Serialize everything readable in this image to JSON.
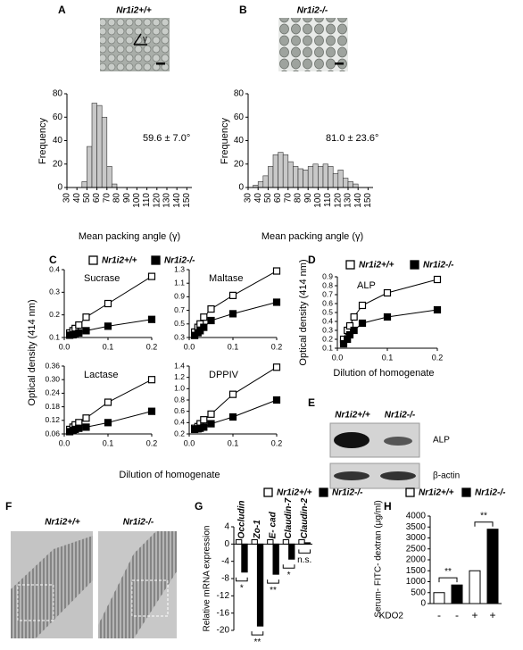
{
  "chart_data": [
    {
      "type": "histogram",
      "panel": "A",
      "title": "Nr1i2+/+",
      "image_label": "γ",
      "bins": [
        45,
        50,
        55,
        60,
        65,
        70,
        75,
        80
      ],
      "values": [
        5,
        35,
        72,
        70,
        60,
        18,
        3
      ],
      "color": "#c8c8c8",
      "xlim": [
        30,
        155
      ],
      "xticks": [
        30,
        40,
        50,
        60,
        70,
        80,
        90,
        100,
        110,
        120,
        130,
        140,
        150
      ],
      "ylim": [
        0,
        80
      ],
      "yticks": [
        0,
        20,
        40,
        60,
        80
      ],
      "xlabel": "Mean packing angle (γ)",
      "ylabel": "Frequency",
      "annotation": "59.6 ± 7.0°"
    },
    {
      "type": "histogram",
      "panel": "B",
      "title": "Nr1i2-/-",
      "bins": [
        35,
        40,
        45,
        50,
        55,
        60,
        65,
        70,
        75,
        80,
        85,
        90,
        95,
        100,
        105,
        110,
        115,
        120,
        125,
        130,
        135,
        140
      ],
      "values": [
        2,
        5,
        10,
        18,
        28,
        30,
        28,
        22,
        18,
        16,
        15,
        18,
        20,
        18,
        20,
        18,
        12,
        15,
        8,
        5,
        3
      ],
      "color": "#c8c8c8",
      "xlim": [
        30,
        155
      ],
      "xticks": [
        30,
        40,
        50,
        60,
        70,
        80,
        90,
        100,
        110,
        120,
        130,
        140,
        150
      ],
      "ylim": [
        0,
        80
      ],
      "yticks": [
        0,
        20,
        40,
        60,
        80
      ],
      "xlabel": "Mean packing angle (γ)",
      "ylabel": "Frequency",
      "annotation": "81.0 ± 23.6°"
    },
    {
      "type": "line",
      "panel": "C",
      "series": [
        {
          "name": "Nr1i2+/+",
          "color": "#ffffff"
        },
        {
          "name": "Nr1i2-/-",
          "color": "#000000"
        }
      ],
      "x": [
        0.0125,
        0.02,
        0.025,
        0.0333,
        0.05,
        0.1,
        0.2
      ],
      "xlim": [
        0,
        0.2
      ],
      "xticks": [
        {
          "value": 0,
          "label": "0.0"
        },
        0.1,
        0.2
      ],
      "xlabel": "Dilution of homogenate",
      "ylabel": "Optical density (414 nm)",
      "subplots": [
        {
          "title": "Sucrase",
          "ylim": [
            0.1,
            0.4
          ],
          "yticks": [
            0.1,
            0.2,
            0.3,
            0.4
          ],
          "values": [
            [
              0.12,
              0.13,
              0.14,
              0.155,
              0.19,
              0.25,
              0.37
            ],
            [
              0.11,
              0.112,
              0.115,
              0.12,
              0.13,
              0.15,
              0.18
            ]
          ]
        },
        {
          "title": "Maltase",
          "ylim": [
            0.3,
            1.3
          ],
          "yticks": [
            0.3,
            0.5,
            0.7,
            0.9,
            1.1,
            1.3
          ],
          "values": [
            [
              0.38,
              0.45,
              0.5,
              0.6,
              0.72,
              0.92,
              1.28
            ],
            [
              0.33,
              0.37,
              0.4,
              0.45,
              0.55,
              0.65,
              0.82
            ]
          ]
        },
        {
          "title": "Lactase",
          "ylim": [
            0.06,
            0.36
          ],
          "yticks": [
            0.06,
            0.12,
            0.18,
            0.24,
            {
              "value": 0.3,
              "label": "0.30"
            },
            0.36
          ],
          "values": [
            [
              0.08,
              0.09,
              0.1,
              0.11,
              0.13,
              0.2,
              0.3
            ],
            [
              0.07,
              0.075,
              0.08,
              0.085,
              0.09,
              0.11,
              0.16
            ]
          ]
        },
        {
          "title": "DPPIV",
          "ylim": [
            0.2,
            1.4
          ],
          "yticks": [
            0.2,
            0.4,
            0.6,
            0.8,
            {
              "value": 1,
              "label": "1.0"
            },
            1.2,
            1.4
          ],
          "values": [
            [
              0.3,
              0.33,
              0.38,
              0.45,
              0.55,
              0.9,
              1.38
            ],
            [
              0.28,
              0.29,
              0.3,
              0.32,
              0.38,
              0.5,
              0.8
            ]
          ]
        }
      ]
    },
    {
      "type": "line",
      "panel": "D",
      "series": [
        {
          "name": "Nr1i2+/+",
          "color": "#ffffff"
        },
        {
          "name": "Nr1i2-/-",
          "color": "#000000"
        }
      ],
      "x": [
        0.0125,
        0.02,
        0.025,
        0.0333,
        0.05,
        0.1,
        0.2
      ],
      "xlim": [
        0,
        0.2
      ],
      "xticks": [
        {
          "value": 0,
          "label": "0.0"
        },
        0.1,
        0.2
      ],
      "xlabel": "Dilution of homogenate",
      "ylabel": "Optical density (414 nm)",
      "subplots": [
        {
          "title": "ALP",
          "ylim": [
            0.1,
            0.9
          ],
          "yticks": [
            0.1,
            0.2,
            0.3,
            0.4,
            0.5,
            0.6,
            0.7,
            0.8,
            0.9
          ],
          "values": [
            [
              0.2,
              0.3,
              0.35,
              0.45,
              0.58,
              0.72,
              0.87
            ],
            [
              0.15,
              0.2,
              0.25,
              0.3,
              0.38,
              0.45,
              0.53
            ]
          ]
        }
      ]
    },
    {
      "type": "bar",
      "panel": "G",
      "categories": [
        "Occludin",
        "Zo-1",
        "E- cad",
        "Claudin-7",
        "Claudin-2"
      ],
      "series": [
        {
          "name": "Nr1i2+/+",
          "color": "#ffffff",
          "values": [
            1,
            1,
            1,
            1,
            1
          ]
        },
        {
          "name": "Nr1i2-/-",
          "color": "#000000",
          "values": [
            -6.5,
            -19,
            -7,
            -3.5,
            0.3
          ]
        }
      ],
      "ylim": [
        -20,
        4
      ],
      "yticks": [
        -20,
        -16,
        -12,
        -8,
        -4,
        0,
        4
      ],
      "ylabel": "Relative mRNA expression",
      "significance": [
        "*",
        "**",
        "**",
        "*",
        "n.s."
      ]
    },
    {
      "type": "bar",
      "panel": "H",
      "categories": [
        "-",
        "-",
        "+",
        "+"
      ],
      "xlabel": "KDO2",
      "series": [
        {
          "name": "Nr1i2+/+",
          "color": "#ffffff",
          "values": [
            500,
            null,
            1500,
            null
          ]
        },
        {
          "name": "Nr1i2-/-",
          "color": "#000000",
          "values": [
            null,
            850,
            null,
            3400
          ]
        }
      ],
      "ylim": [
        0,
        4000
      ],
      "yticks": [
        0,
        500,
        1000,
        1500,
        2000,
        2500,
        3000,
        3500,
        4000
      ],
      "ylabel": "Serum- FITC- dextran (μg/ml)",
      "significance": [
        "**",
        "**"
      ]
    }
  ],
  "blot": {
    "panel": "E",
    "lanes": [
      "Nr1i2+/+",
      "Nr1i2-/-"
    ],
    "bands": [
      "ALP",
      "β-actin"
    ]
  },
  "micrographs": {
    "panel": "F",
    "labels": [
      "Nr1i2+/+",
      "Nr1i2-/-"
    ]
  }
}
